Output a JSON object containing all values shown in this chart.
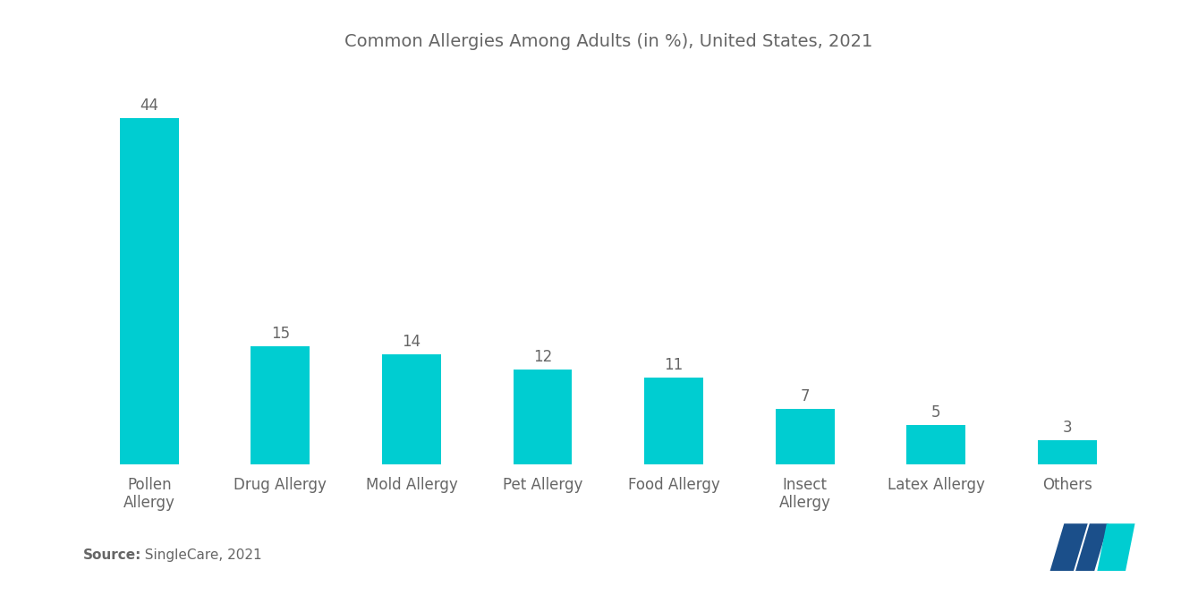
{
  "title": "Common Allergies Among Adults (in %), United States, 2021",
  "categories": [
    "Pollen\nAllergy",
    "Drug Allergy",
    "Mold Allergy",
    "Pet Allergy",
    "Food Allergy",
    "Insect\nAllergy",
    "Latex Allergy",
    "Others"
  ],
  "values": [
    44,
    15,
    14,
    12,
    11,
    7,
    5,
    3
  ],
  "bar_color": "#00CDD1",
  "background_color": "#ffffff",
  "source_bold": "Source:",
  "source_regular": "  SingleCare, 2021",
  "title_fontsize": 14,
  "label_fontsize": 12,
  "value_fontsize": 12,
  "source_fontsize": 11,
  "ylim": [
    0,
    50
  ],
  "bar_width": 0.45,
  "logo_dark_blue": "#1B4F8A",
  "logo_teal": "#00CDD1",
  "text_color": "#666666"
}
